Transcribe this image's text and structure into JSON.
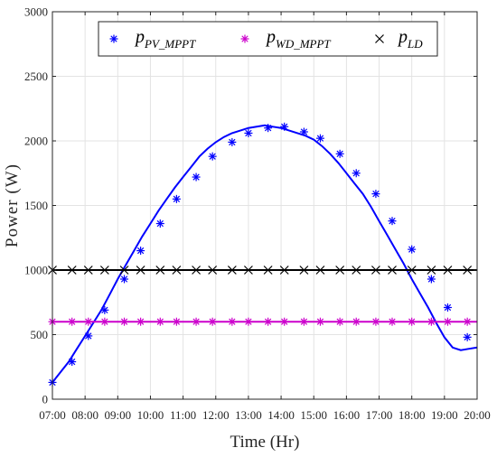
{
  "chart_data": {
    "type": "line",
    "xlabel": "Time (Hr)",
    "ylabel": "Power (W)",
    "xlim": [
      7,
      20
    ],
    "ylim": [
      0,
      3000
    ],
    "grid": true,
    "x_tick_labels": [
      "07:00",
      "08:00",
      "09:00",
      "10:00",
      "11:00",
      "12:00",
      "13:00",
      "14:00",
      "15:00",
      "16:00",
      "17:00",
      "18:00",
      "19:00",
      "20:00"
    ],
    "y_tick_labels": [
      "0",
      "500",
      "1000",
      "1500",
      "2000",
      "2500",
      "3000"
    ],
    "y_ticks": [
      0,
      500,
      1000,
      1500,
      2000,
      2500,
      3000
    ],
    "legend_position": "top",
    "series": [
      {
        "name": "p_PV_MPPT",
        "legend_main": "p",
        "legend_sub": "PV_MPPT",
        "color": "#0000ff",
        "marker": "asterisk",
        "x": [
          7.0,
          7.25,
          7.5,
          7.75,
          8.0,
          8.25,
          8.5,
          8.75,
          9.0,
          9.25,
          9.5,
          9.75,
          10.0,
          10.25,
          10.5,
          10.75,
          11.0,
          11.25,
          11.5,
          11.75,
          12.0,
          12.25,
          12.5,
          12.75,
          13.0,
          13.25,
          13.5,
          13.75,
          14.0,
          14.25,
          14.5,
          14.75,
          15.0,
          15.25,
          15.5,
          15.75,
          16.0,
          16.25,
          16.5,
          16.75,
          17.0,
          17.25,
          17.5,
          17.75,
          18.0,
          18.25,
          18.5,
          18.75,
          19.0,
          19.25,
          19.5,
          19.75,
          20.0
        ],
        "values": [
          130,
          210,
          290,
          390,
          490,
          590,
          690,
          810,
          930,
          1040,
          1150,
          1260,
          1360,
          1460,
          1550,
          1640,
          1720,
          1800,
          1880,
          1940,
          1990,
          2030,
          2060,
          2080,
          2100,
          2110,
          2120,
          2110,
          2100,
          2080,
          2060,
          2040,
          2010,
          1960,
          1900,
          1830,
          1750,
          1670,
          1590,
          1490,
          1380,
          1270,
          1160,
          1050,
          930,
          820,
          710,
          590,
          480,
          400,
          380,
          390,
          400
        ],
        "marker_x": [
          7.0,
          7.6,
          8.1,
          8.6,
          9.2,
          9.7,
          10.3,
          10.8,
          11.4,
          11.9,
          12.5,
          13.0,
          13.6,
          14.1,
          14.7,
          15.2,
          15.8,
          16.3,
          16.9,
          17.4,
          18.0,
          18.6,
          19.1,
          19.7
        ],
        "marker_values": [
          130,
          290,
          490,
          690,
          930,
          1150,
          1360,
          1550,
          1720,
          1880,
          1990,
          2060,
          2100,
          2110,
          2070,
          2020,
          1900,
          1750,
          1590,
          1380,
          1160,
          930,
          710,
          480
        ]
      },
      {
        "name": "p_WD_MPPT",
        "legend_main": "p",
        "legend_sub": "WD_MPPT",
        "color": "#cc00cc",
        "marker": "asterisk",
        "x": [
          7,
          20
        ],
        "values": [
          600,
          600
        ],
        "marker_x": [
          7.0,
          7.6,
          8.1,
          8.6,
          9.2,
          9.7,
          10.3,
          10.8,
          11.4,
          11.9,
          12.5,
          13.0,
          13.6,
          14.1,
          14.7,
          15.2,
          15.8,
          16.3,
          16.9,
          17.4,
          18.0,
          18.6,
          19.1,
          19.7
        ],
        "marker_values": [
          600,
          600,
          600,
          600,
          600,
          600,
          600,
          600,
          600,
          600,
          600,
          600,
          600,
          600,
          600,
          600,
          600,
          600,
          600,
          600,
          600,
          600,
          600,
          600
        ]
      },
      {
        "name": "p_LD",
        "legend_main": "p",
        "legend_sub": "LD",
        "color": "#000000",
        "marker": "x",
        "x": [
          7,
          20
        ],
        "values": [
          1000,
          1000
        ],
        "marker_x": [
          7.0,
          7.6,
          8.1,
          8.6,
          9.2,
          9.7,
          10.3,
          10.8,
          11.4,
          11.9,
          12.5,
          13.0,
          13.6,
          14.1,
          14.7,
          15.2,
          15.8,
          16.3,
          16.9,
          17.4,
          18.0,
          18.6,
          19.1,
          19.7
        ],
        "marker_values": [
          1000,
          1000,
          1000,
          1000,
          1000,
          1000,
          1000,
          1000,
          1000,
          1000,
          1000,
          1000,
          1000,
          1000,
          1000,
          1000,
          1000,
          1000,
          1000,
          1000,
          1000,
          1000,
          1000,
          1000
        ]
      }
    ]
  }
}
